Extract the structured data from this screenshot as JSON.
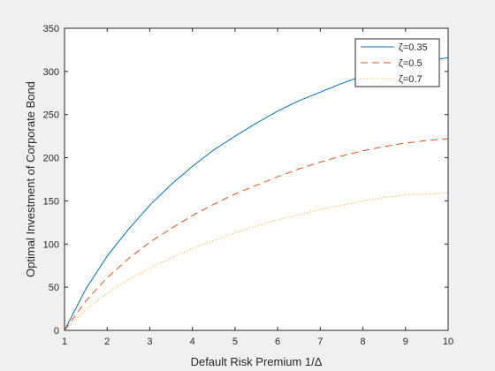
{
  "chart_data": {
    "type": "line",
    "xlabel": "Default Risk Premium 1/Δ",
    "ylabel": "Optimal Investment of Corporate Bond",
    "xlim": [
      1,
      10
    ],
    "ylim": [
      0,
      350
    ],
    "xticks": [
      1,
      2,
      3,
      4,
      5,
      6,
      7,
      8,
      9,
      10
    ],
    "yticks": [
      0,
      50,
      100,
      150,
      200,
      250,
      300,
      350
    ],
    "grid": false,
    "legend_position": "top-right",
    "x": [
      1,
      1.5,
      2,
      2.5,
      3,
      3.5,
      4,
      4.5,
      5,
      5.5,
      6,
      6.5,
      7,
      7.5,
      8,
      8.5,
      9,
      9.5,
      10
    ],
    "series": [
      {
        "name": "ζ=0.35",
        "style": "solid",
        "color": "#0072BD",
        "values": [
          0,
          48,
          86,
          117,
          145,
          169,
          190,
          209,
          225,
          240,
          254,
          266,
          276,
          286,
          295,
          302,
          308,
          312,
          316
        ]
      },
      {
        "name": "ζ=0.5",
        "style": "dashed",
        "color": "#D95319",
        "values": [
          0,
          34,
          61,
          83,
          102,
          118,
          133,
          146,
          158,
          168,
          178,
          187,
          195,
          202,
          208,
          213,
          217,
          220,
          222
        ]
      },
      {
        "name": "ζ=0.7",
        "style": "dotted",
        "color": "#EDB120",
        "values": [
          0,
          24,
          43,
          59,
          72,
          84,
          95,
          104,
          113,
          121,
          128,
          134,
          140,
          145,
          150,
          154,
          157,
          158,
          159
        ]
      }
    ]
  }
}
